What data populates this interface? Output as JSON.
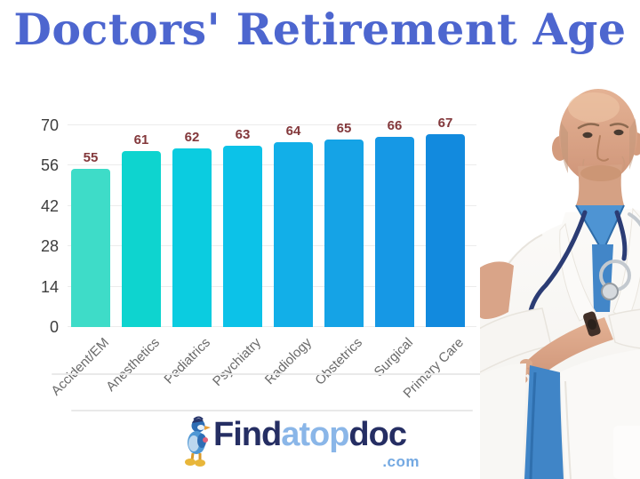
{
  "title": "Doctors' Retirement Age",
  "colors": {
    "title": "#4d66cf",
    "value_label": "#83383b",
    "y_tick_label": "#3d3d3d",
    "x_tick_label": "#6a6a6a",
    "gridline": "#ececec",
    "divider": "#e9e9e9",
    "logo_navy": "#252e63",
    "logo_light_blue": "#8ab6e8",
    "logo_tld_blue": "#74a9e2"
  },
  "chart_data": {
    "type": "bar",
    "title": "Doctors' Retirement Age",
    "categories": [
      "Accident/EM",
      "Anesthetics",
      "Pediatrics",
      "Psychiatry",
      "Radiology",
      "Obstetrics",
      "Surgical",
      "Primary Care"
    ],
    "values": [
      55,
      61,
      62,
      63,
      64,
      65,
      66,
      67
    ],
    "bar_colors": [
      "#3edcc8",
      "#0ed4cf",
      "#0bcce0",
      "#0cc2e8",
      "#12afe8",
      "#15a3e6",
      "#1698e5",
      "#128ade"
    ],
    "data_labels_shown": true,
    "y_ticks": [
      0,
      14,
      28,
      42,
      56,
      70
    ],
    "ylim": [
      0,
      70
    ],
    "xlabel": "",
    "ylabel": "",
    "legend": "none",
    "grid": true,
    "x_label_rotation": -45
  },
  "branding": {
    "name_part1": "Find",
    "name_part2": "atop",
    "name_part3": "doc",
    "tld": ".com"
  }
}
